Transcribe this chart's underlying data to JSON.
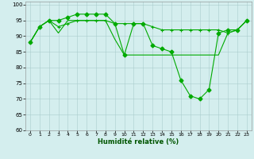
{
  "xlabel": "Humidité relative (%)",
  "background_color": "#d4eeee",
  "grid_color": "#aacccc",
  "line_color": "#00aa00",
  "xlim": [
    -0.5,
    23.5
  ],
  "ylim": [
    60,
    101
  ],
  "yticks": [
    60,
    65,
    70,
    75,
    80,
    85,
    90,
    95,
    100
  ],
  "xticks": [
    0,
    1,
    2,
    3,
    4,
    5,
    6,
    7,
    8,
    9,
    10,
    11,
    12,
    13,
    14,
    15,
    16,
    17,
    18,
    19,
    20,
    21,
    22,
    23
  ],
  "series1_x": [
    0,
    1,
    2,
    3,
    4,
    5,
    6,
    7,
    8,
    9,
    10,
    11,
    12,
    13,
    14,
    15,
    16,
    17,
    18,
    19,
    20,
    21,
    22,
    23
  ],
  "series1_y": [
    88,
    93,
    95,
    95,
    96,
    97,
    97,
    97,
    97,
    94,
    84,
    94,
    94,
    87,
    86,
    85,
    76,
    71,
    70,
    73,
    91,
    92,
    92,
    95
  ],
  "series2_x": [
    0,
    1,
    2,
    3,
    4,
    5,
    6,
    7,
    8,
    9,
    10,
    11,
    12,
    13,
    14,
    15,
    16,
    17,
    18,
    19,
    20,
    21,
    22,
    23
  ],
  "series2_y": [
    88,
    93,
    95,
    93,
    94,
    95,
    95,
    95,
    95,
    94,
    94,
    94,
    94,
    93,
    92,
    92,
    92,
    92,
    92,
    92,
    92,
    91,
    92,
    95
  ],
  "series3_x": [
    0,
    1,
    2,
    3,
    4,
    5,
    6,
    7,
    8,
    9,
    10,
    11,
    12,
    13,
    14,
    15,
    16,
    17,
    18,
    19,
    20,
    21,
    22,
    23
  ],
  "series3_y": [
    88,
    93,
    95,
    91,
    95,
    95,
    95,
    95,
    95,
    89,
    84,
    84,
    84,
    84,
    84,
    84,
    84,
    84,
    84,
    84,
    84,
    91,
    92,
    95
  ]
}
